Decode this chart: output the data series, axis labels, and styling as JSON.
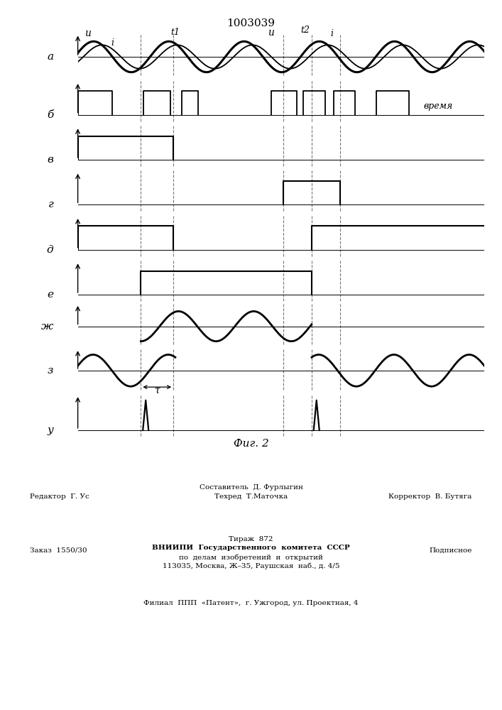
{
  "title": "1003039",
  "fig_label": "Фиг. 2",
  "bg_color": "#ffffff",
  "row_labels": [
    "а",
    "б",
    "в",
    "г",
    "д",
    "е",
    "ж",
    "з",
    "у"
  ],
  "xlabel": "время",
  "tau": "τ",
  "footer_editor": "Редактор  Г. Ус",
  "footer_compiler": "Составитель  Д. Фурлыгин",
  "footer_techred": "Техред  Т.Маточка",
  "footer_corrector": "Корректор  В. Бутяга",
  "footer_order": "Заказ  1550/30",
  "footer_copies": "Тираж  872",
  "footer_signed": "Подписное",
  "footer_org": "ВНИИПИ  Государственного  комитета  СССР",
  "footer_dept": "по  делам  изобретений  и  открытий",
  "footer_addr": "113035, Москва, Ж–35, Раушская  наб., д. 4/5",
  "footer_branch": "Филиал  ППП  «Патент»,  г. Ужгород, ул. Проектная, 4"
}
